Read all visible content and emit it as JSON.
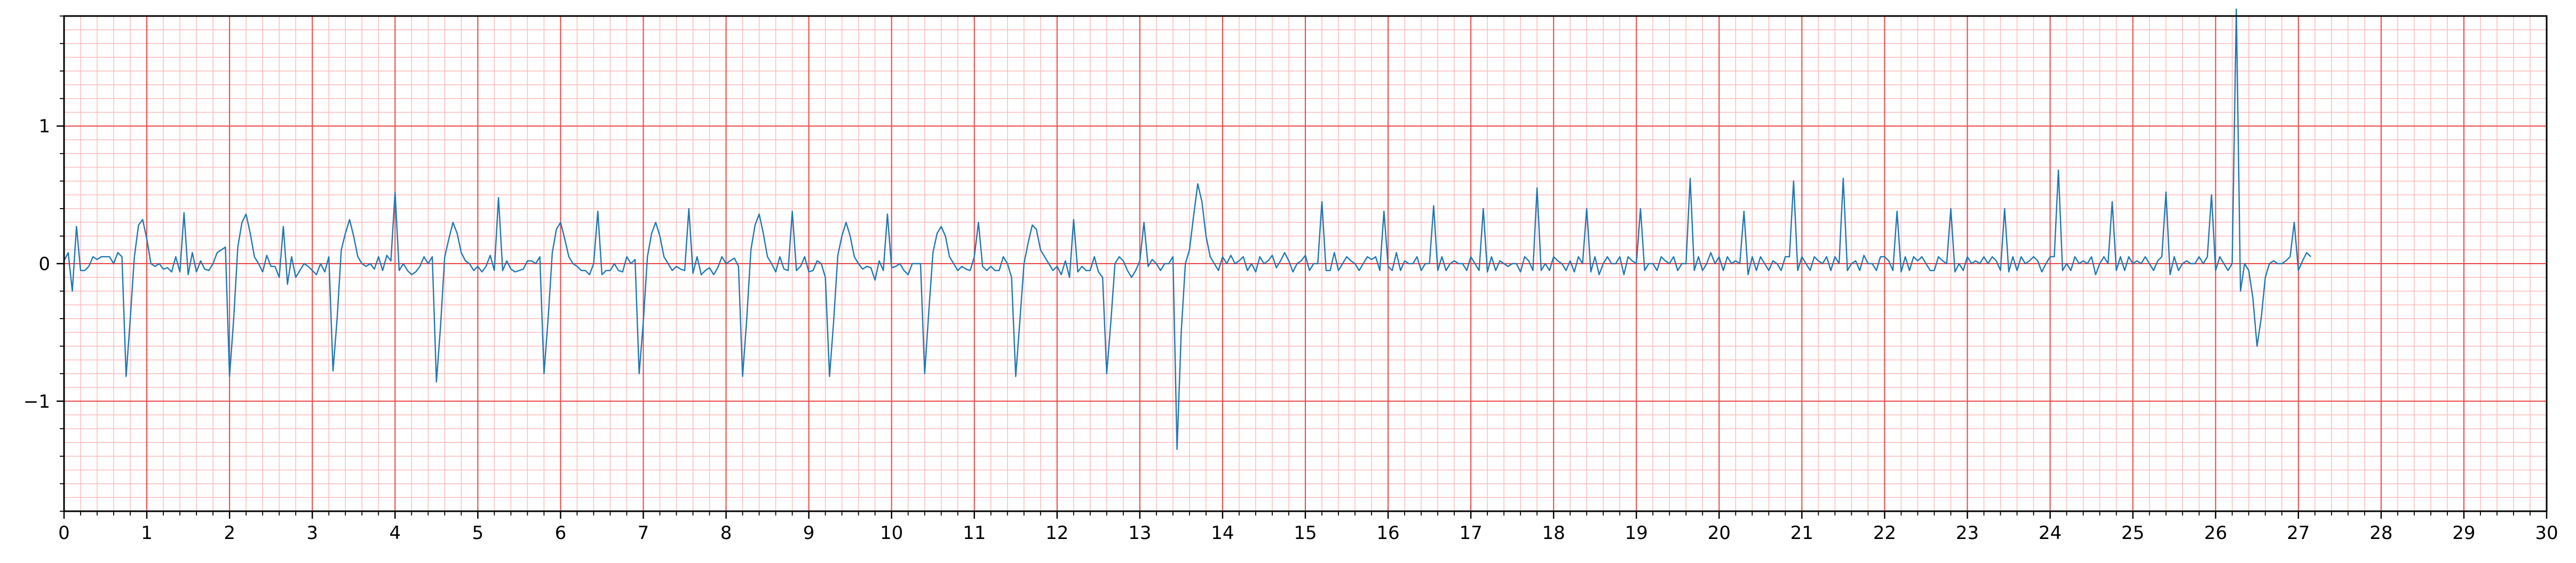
{
  "chart_data": {
    "type": "line",
    "title": "",
    "xlabel": "",
    "ylabel": "",
    "xlim": [
      0,
      30
    ],
    "ylim": [
      -1.8,
      1.8
    ],
    "x_ticks": [
      0,
      1,
      2,
      3,
      4,
      5,
      6,
      7,
      8,
      9,
      10,
      11,
      12,
      13,
      14,
      15,
      16,
      17,
      18,
      19,
      20,
      21,
      22,
      23,
      24,
      25,
      26,
      27,
      28,
      29,
      30
    ],
    "x_tick_labels": [
      "0",
      "1",
      "2",
      "3",
      "4",
      "5",
      "6",
      "7",
      "8",
      "9",
      "10",
      "11",
      "12",
      "13",
      "14",
      "15",
      "16",
      "17",
      "18",
      "19",
      "20",
      "21",
      "22",
      "23",
      "24",
      "25",
      "26",
      "27",
      "28",
      "29",
      "30"
    ],
    "y_ticks": [
      -1,
      0,
      1
    ],
    "y_tick_labels": [
      "−1",
      "0",
      "1"
    ],
    "grid": {
      "major": true,
      "minor": true,
      "major_color": "#ee4444",
      "minor_color": "#ffbbbb",
      "x_minor_step": 0.2,
      "y_minor_step": 0.1
    },
    "line_color": "#1f77b4",
    "series": [
      {
        "sample_rate_hz": 20,
        "x_start": 0,
        "values": [
          0.02,
          0.08,
          -0.2,
          0.27,
          -0.05,
          -0.05,
          -0.02,
          0.05,
          0.03,
          0.05,
          0.05,
          0.05,
          0.0,
          0.08,
          0.05,
          -0.82,
          -0.4,
          0.05,
          0.28,
          0.32,
          0.18,
          0.0,
          -0.02,
          0.0,
          -0.04,
          -0.03,
          -0.06,
          0.05,
          -0.06,
          0.37,
          -0.08,
          0.08,
          -0.06,
          0.02,
          -0.04,
          -0.05,
          0.0,
          0.08,
          0.1,
          0.12,
          -0.82,
          -0.4,
          0.12,
          0.3,
          0.36,
          0.22,
          0.05,
          0.0,
          -0.06,
          0.06,
          -0.02,
          -0.02,
          -0.1,
          0.27,
          -0.15,
          0.05,
          -0.1,
          -0.05,
          0.0,
          -0.02,
          -0.05,
          -0.08,
          0.0,
          -0.06,
          0.05,
          -0.78,
          -0.4,
          0.1,
          0.22,
          0.32,
          0.2,
          0.05,
          0.0,
          -0.02,
          0.0,
          -0.04,
          0.05,
          -0.05,
          0.06,
          0.02,
          0.52,
          -0.05,
          0.0,
          -0.05,
          -0.08,
          -0.06,
          -0.02,
          0.05,
          0.0,
          0.05,
          -0.86,
          -0.45,
          0.05,
          0.18,
          0.3,
          0.22,
          0.08,
          0.02,
          0.0,
          -0.05,
          -0.02,
          -0.06,
          -0.02,
          0.06,
          -0.05,
          0.48,
          -0.05,
          0.02,
          -0.04,
          -0.06,
          -0.05,
          -0.04,
          0.02,
          0.02,
          0.0,
          0.05,
          -0.8,
          -0.4,
          0.08,
          0.25,
          0.3,
          0.18,
          0.05,
          0.0,
          -0.02,
          -0.05,
          -0.05,
          -0.08,
          0.0,
          0.38,
          -0.08,
          -0.05,
          -0.05,
          0.0,
          -0.05,
          -0.06,
          0.05,
          0.0,
          0.03,
          -0.8,
          -0.42,
          0.05,
          0.22,
          0.3,
          0.2,
          0.05,
          0.0,
          -0.05,
          -0.02,
          -0.04,
          -0.05,
          0.4,
          -0.07,
          0.05,
          -0.08,
          -0.05,
          -0.03,
          -0.08,
          -0.03,
          0.05,
          0.0,
          0.02,
          0.04,
          -0.02,
          -0.82,
          -0.4,
          0.1,
          0.28,
          0.36,
          0.22,
          0.05,
          0.0,
          -0.06,
          0.05,
          -0.04,
          -0.05,
          0.38,
          -0.05,
          -0.02,
          0.05,
          -0.06,
          -0.05,
          0.02,
          0.0,
          -0.1,
          -0.82,
          -0.42,
          0.06,
          0.2,
          0.3,
          0.2,
          0.05,
          0.0,
          -0.04,
          -0.02,
          -0.03,
          -0.12,
          0.02,
          -0.05,
          0.36,
          -0.03,
          -0.02,
          0.0,
          -0.05,
          -0.08,
          0.0,
          0.0,
          0.0,
          -0.8,
          -0.35,
          0.08,
          0.22,
          0.27,
          0.2,
          0.05,
          0.0,
          -0.05,
          -0.02,
          -0.04,
          -0.05,
          0.05,
          0.3,
          -0.02,
          -0.05,
          -0.02,
          -0.05,
          -0.05,
          0.05,
          0.0,
          -0.1,
          -0.82,
          -0.42,
          0.0,
          0.15,
          0.28,
          0.25,
          0.1,
          0.05,
          0.0,
          -0.05,
          -0.02,
          -0.08,
          0.02,
          -0.1,
          0.32,
          -0.06,
          -0.02,
          -0.05,
          -0.05,
          0.05,
          -0.06,
          -0.1,
          -0.8,
          -0.42,
          0.0,
          0.05,
          0.02,
          -0.05,
          -0.1,
          -0.05,
          0.02,
          0.3,
          -0.02,
          0.03,
          0.0,
          -0.05,
          0.0,
          0.0,
          0.05,
          -1.35,
          -0.5,
          0.0,
          0.1,
          0.35,
          0.58,
          0.45,
          0.2,
          0.05,
          0.0,
          -0.05,
          0.05,
          0.0,
          0.06,
          0.0,
          0.02,
          0.05,
          -0.05,
          0.0,
          -0.06,
          0.05,
          0.0,
          0.02,
          0.06,
          -0.03,
          0.02,
          0.08,
          0.02,
          -0.06,
          0.0,
          0.02,
          0.06,
          -0.05,
          0.0,
          0.0,
          0.45,
          -0.05,
          -0.05,
          0.08,
          -0.05,
          0.0,
          0.05,
          0.02,
          0.0,
          -0.05,
          0.0,
          0.05,
          0.03,
          0.05,
          -0.05,
          0.38,
          -0.02,
          -0.05,
          0.08,
          -0.05,
          0.02,
          0.0,
          0.0,
          0.05,
          -0.05,
          0.0,
          0.0,
          0.42,
          -0.05,
          0.05,
          -0.05,
          0.0,
          0.02,
          0.0,
          0.0,
          -0.05,
          0.05,
          0.0,
          -0.05,
          0.4,
          -0.06,
          0.05,
          -0.05,
          0.02,
          0.0,
          -0.02,
          0.0,
          0.0,
          -0.06,
          0.05,
          0.02,
          -0.05,
          0.55,
          -0.05,
          0.0,
          -0.05,
          0.05,
          0.02,
          0.0,
          -0.05,
          0.02,
          -0.06,
          0.05,
          0.0,
          0.4,
          -0.06,
          0.05,
          -0.08,
          0.0,
          0.05,
          0.0,
          0.0,
          0.05,
          -0.08,
          0.05,
          0.02,
          0.0,
          0.4,
          -0.05,
          0.0,
          0.0,
          -0.05,
          0.05,
          0.02,
          0.0,
          0.05,
          -0.05,
          0.0,
          0.0,
          0.62,
          -0.05,
          0.05,
          -0.05,
          0.0,
          0.08,
          0.0,
          0.05,
          -0.05,
          0.05,
          0.0,
          0.02,
          0.0,
          0.38,
          -0.08,
          0.05,
          -0.05,
          0.05,
          0.0,
          -0.05,
          0.02,
          0.0,
          -0.05,
          0.05,
          0.05,
          0.6,
          -0.05,
          0.05,
          0.0,
          -0.05,
          0.05,
          0.02,
          0.0,
          0.05,
          -0.05,
          0.05,
          0.0,
          0.62,
          -0.05,
          0.0,
          0.02,
          -0.05,
          0.06,
          0.0,
          0.0,
          -0.05,
          0.05,
          0.05,
          0.02,
          -0.05,
          0.38,
          -0.06,
          0.05,
          -0.05,
          0.05,
          0.02,
          0.05,
          0.0,
          -0.05,
          -0.05,
          0.05,
          0.02,
          0.0,
          0.4,
          -0.06,
          0.0,
          -0.05,
          0.05,
          0.0,
          0.02,
          0.0,
          0.05,
          0.0,
          0.05,
          0.02,
          -0.05,
          0.4,
          -0.06,
          0.05,
          -0.05,
          0.05,
          0.0,
          0.02,
          0.05,
          0.02,
          -0.06,
          0.0,
          0.05,
          0.05,
          0.68,
          -0.05,
          0.0,
          -0.05,
          0.05,
          0.0,
          0.02,
          0.0,
          0.05,
          -0.08,
          0.0,
          0.05,
          0.0,
          0.45,
          -0.05,
          0.05,
          -0.05,
          0.05,
          0.0,
          0.02,
          0.0,
          0.05,
          0.0,
          -0.05,
          0.02,
          0.05,
          0.52,
          -0.08,
          0.05,
          -0.05,
          0.0,
          0.02,
          0.0,
          0.0,
          0.05,
          0.0,
          0.05,
          0.5,
          -0.05,
          0.05,
          0.0,
          -0.05,
          0.0,
          1.85,
          -0.2,
          0.0,
          -0.05,
          -0.25,
          -0.6,
          -0.4,
          -0.1,
          0.0,
          0.02,
          0.0,
          0.0,
          0.02,
          0.05,
          0.3,
          -0.05,
          0.02,
          0.08,
          0.05
        ]
      }
    ]
  }
}
